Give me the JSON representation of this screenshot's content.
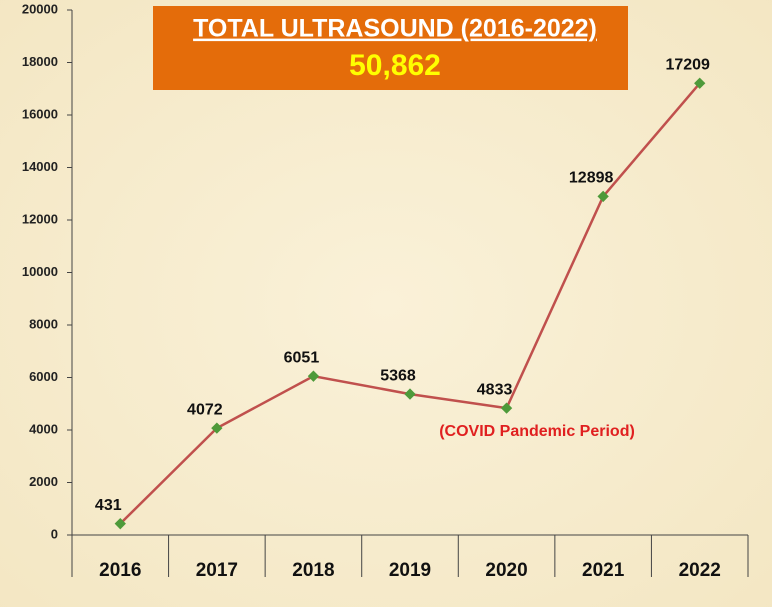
{
  "chart_data": {
    "type": "line",
    "title": "TOTAL ULTRASOUND (2016-2022)",
    "subtitle": "50,862",
    "annotation": "(COVID Pandemic  Period)",
    "categories": [
      "2016",
      "2017",
      "2018",
      "2019",
      "2020",
      "2021",
      "2022"
    ],
    "series": [
      {
        "name": "Total Ultrasound",
        "color": "#c0504d",
        "marker_color": "#4e9a3a",
        "values": [
          431,
          4072,
          6051,
          5368,
          4833,
          12898,
          17209
        ]
      }
    ],
    "ylim": [
      0,
      20000
    ],
    "yticks": [
      0,
      2000,
      4000,
      6000,
      8000,
      10000,
      12000,
      14000,
      16000,
      18000,
      20000
    ]
  }
}
